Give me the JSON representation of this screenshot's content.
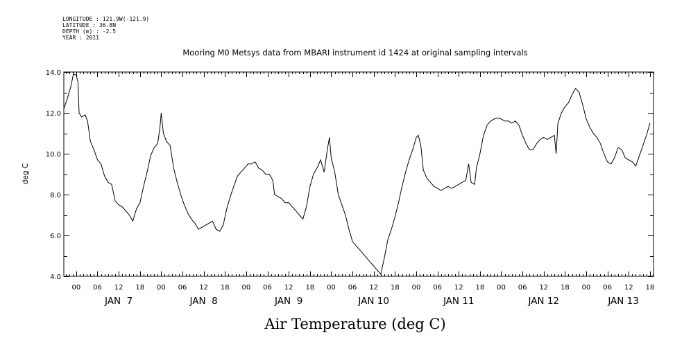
{
  "header": {
    "meta_lines": [
      "LONGITUDE : 121.9W(-121.9)",
      "LATITUDE : 36.8N",
      "DEPTH (m) : -2.5",
      "YEAR : 2011"
    ],
    "title": "Mooring M0 Metsys data from MBARI instrument id 1424 at original sampling intervals"
  },
  "chart_data": {
    "type": "line",
    "title": "Mooring M0 Metsys data from MBARI instrument id 1424 at original sampling intervals",
    "xlabel": "Air Temperature (deg C)",
    "ylabel": "deg C",
    "x_units": "hours since 2011-01-07 00:00",
    "xlim": [
      -3.5,
      163
    ],
    "ylim": [
      4.0,
      14.0
    ],
    "y_ticks": [
      "4.0",
      "6.0",
      "8.0",
      "10.0",
      "12.0",
      "14.0"
    ],
    "x_hour_ticks": [
      {
        "h": 0,
        "label": "00"
      },
      {
        "h": 6,
        "label": "06"
      },
      {
        "h": 12,
        "label": "12"
      },
      {
        "h": 18,
        "label": "18"
      },
      {
        "h": 24,
        "label": "00"
      },
      {
        "h": 30,
        "label": "06"
      },
      {
        "h": 36,
        "label": "12"
      },
      {
        "h": 42,
        "label": "18"
      },
      {
        "h": 48,
        "label": "00"
      },
      {
        "h": 54,
        "label": "06"
      },
      {
        "h": 60,
        "label": "12"
      },
      {
        "h": 66,
        "label": "18"
      },
      {
        "h": 72,
        "label": "00"
      },
      {
        "h": 78,
        "label": "06"
      },
      {
        "h": 84,
        "label": "12"
      },
      {
        "h": 90,
        "label": "18"
      },
      {
        "h": 96,
        "label": "00"
      },
      {
        "h": 102,
        "label": "06"
      },
      {
        "h": 108,
        "label": "12"
      },
      {
        "h": 114,
        "label": "18"
      },
      {
        "h": 120,
        "label": "00"
      },
      {
        "h": 126,
        "label": "06"
      },
      {
        "h": 132,
        "label": "12"
      },
      {
        "h": 138,
        "label": "18"
      },
      {
        "h": 144,
        "label": "00"
      },
      {
        "h": 150,
        "label": "06"
      },
      {
        "h": 156,
        "label": "12"
      },
      {
        "h": 162,
        "label": "18"
      }
    ],
    "day_labels": [
      {
        "h": 12,
        "label": "JAN  7"
      },
      {
        "h": 36,
        "label": "JAN  8"
      },
      {
        "h": 60,
        "label": "JAN  9"
      },
      {
        "h": 84,
        "label": "JAN 10"
      },
      {
        "h": 108,
        "label": "JAN 11"
      },
      {
        "h": 132,
        "label": "JAN 12"
      },
      {
        "h": 154.5,
        "label": "JAN 13"
      }
    ],
    "series": [
      {
        "values": [
          [
            -3.5,
            12.2
          ],
          [
            -2.5,
            12.7
          ],
          [
            -1.5,
            13.3
          ],
          [
            -0.8,
            13.9
          ],
          [
            0,
            13.85
          ],
          [
            0.5,
            13.5
          ],
          [
            0.8,
            12.0
          ],
          [
            1.5,
            11.8
          ],
          [
            2.5,
            11.9
          ],
          [
            3.2,
            11.6
          ],
          [
            4,
            10.6
          ],
          [
            5,
            10.2
          ],
          [
            6,
            9.7
          ],
          [
            7,
            9.5
          ],
          [
            8,
            8.9
          ],
          [
            9,
            8.6
          ],
          [
            10,
            8.5
          ],
          [
            11,
            7.7
          ],
          [
            12,
            7.5
          ],
          [
            13,
            7.4
          ],
          [
            14,
            7.2
          ],
          [
            15,
            7.0
          ],
          [
            16,
            6.7
          ],
          [
            17,
            7.3
          ],
          [
            18,
            7.6
          ],
          [
            19,
            8.4
          ],
          [
            20,
            9.1
          ],
          [
            21,
            9.9
          ],
          [
            22,
            10.3
          ],
          [
            23,
            10.5
          ],
          [
            23.6,
            11.2
          ],
          [
            24,
            12.0
          ],
          [
            24.6,
            11.0
          ],
          [
            25.5,
            10.6
          ],
          [
            26.5,
            10.4
          ],
          [
            27.5,
            9.3
          ],
          [
            28.5,
            8.6
          ],
          [
            29.5,
            8.0
          ],
          [
            30.5,
            7.5
          ],
          [
            31.5,
            7.1
          ],
          [
            32.5,
            6.8
          ],
          [
            33.5,
            6.6
          ],
          [
            34.5,
            6.3
          ],
          [
            35.5,
            6.4
          ],
          [
            36.5,
            6.5
          ],
          [
            37.5,
            6.6
          ],
          [
            38.5,
            6.7
          ],
          [
            39.5,
            6.3
          ],
          [
            40.5,
            6.2
          ],
          [
            41.5,
            6.5
          ],
          [
            42.5,
            7.3
          ],
          [
            43.5,
            7.9
          ],
          [
            44.5,
            8.4
          ],
          [
            45.5,
            8.9
          ],
          [
            46.5,
            9.1
          ],
          [
            47.5,
            9.3
          ],
          [
            48.5,
            9.5
          ],
          [
            49.5,
            9.5
          ],
          [
            50.5,
            9.6
          ],
          [
            51.5,
            9.3
          ],
          [
            52.5,
            9.2
          ],
          [
            53.5,
            9.0
          ],
          [
            54.5,
            9.0
          ],
          [
            55.5,
            8.7
          ],
          [
            56,
            8.0
          ],
          [
            57,
            7.9
          ],
          [
            58,
            7.8
          ],
          [
            59,
            7.6
          ],
          [
            60,
            7.6
          ],
          [
            61,
            7.4
          ],
          [
            62,
            7.2
          ],
          [
            63,
            7.0
          ],
          [
            64,
            6.8
          ],
          [
            65,
            7.4
          ],
          [
            66,
            8.4
          ],
          [
            67,
            9.0
          ],
          [
            68,
            9.3
          ],
          [
            69,
            9.7
          ],
          [
            70,
            9.1
          ],
          [
            71,
            10.3
          ],
          [
            71.5,
            10.8
          ],
          [
            72,
            9.8
          ],
          [
            73,
            9.1
          ],
          [
            74,
            8.0
          ],
          [
            75,
            7.5
          ],
          [
            76,
            7.0
          ],
          [
            77,
            6.3
          ],
          [
            78,
            5.7
          ],
          [
            79,
            5.5
          ],
          [
            80,
            5.3
          ],
          [
            81,
            5.1
          ],
          [
            82,
            4.9
          ],
          [
            83,
            4.7
          ],
          [
            84,
            4.5
          ],
          [
            85,
            4.3
          ],
          [
            86,
            4.1
          ],
          [
            87,
            4.9
          ],
          [
            88,
            5.8
          ],
          [
            89,
            6.3
          ],
          [
            90,
            6.9
          ],
          [
            91,
            7.6
          ],
          [
            92,
            8.4
          ],
          [
            93,
            9.1
          ],
          [
            94,
            9.7
          ],
          [
            95,
            10.2
          ],
          [
            96,
            10.8
          ],
          [
            96.6,
            10.9
          ],
          [
            97.3,
            10.4
          ],
          [
            98,
            9.2
          ],
          [
            99,
            8.8
          ],
          [
            100,
            8.6
          ],
          [
            101,
            8.4
          ],
          [
            102,
            8.3
          ],
          [
            103,
            8.2
          ],
          [
            104,
            8.3
          ],
          [
            105,
            8.4
          ],
          [
            106,
            8.3
          ],
          [
            107,
            8.4
          ],
          [
            108,
            8.5
          ],
          [
            109,
            8.6
          ],
          [
            110,
            8.7
          ],
          [
            110.8,
            9.5
          ],
          [
            111.5,
            8.6
          ],
          [
            112.5,
            8.5
          ],
          [
            113,
            9.3
          ],
          [
            114,
            10.0
          ],
          [
            115,
            10.9
          ],
          [
            116,
            11.4
          ],
          [
            117,
            11.6
          ],
          [
            118,
            11.7
          ],
          [
            119,
            11.75
          ],
          [
            120,
            11.7
          ],
          [
            121,
            11.6
          ],
          [
            122,
            11.6
          ],
          [
            123,
            11.5
          ],
          [
            124,
            11.6
          ],
          [
            125,
            11.4
          ],
          [
            126,
            10.9
          ],
          [
            127,
            10.5
          ],
          [
            128,
            10.2
          ],
          [
            129,
            10.2
          ],
          [
            130,
            10.5
          ],
          [
            131,
            10.7
          ],
          [
            132,
            10.8
          ],
          [
            133,
            10.7
          ],
          [
            134,
            10.8
          ],
          [
            135,
            10.9
          ],
          [
            135.5,
            10.0
          ],
          [
            136,
            11.5
          ],
          [
            137,
            12.0
          ],
          [
            138,
            12.3
          ],
          [
            139,
            12.5
          ],
          [
            140,
            12.9
          ],
          [
            141,
            13.2
          ],
          [
            142,
            13.0
          ],
          [
            143,
            12.4
          ],
          [
            144,
            11.7
          ],
          [
            145,
            11.3
          ],
          [
            146,
            11.0
          ],
          [
            147,
            10.8
          ],
          [
            148,
            10.5
          ],
          [
            149,
            10.0
          ],
          [
            150,
            9.6
          ],
          [
            151,
            9.5
          ],
          [
            152,
            9.8
          ],
          [
            153,
            10.3
          ],
          [
            154,
            10.2
          ],
          [
            155,
            9.8
          ],
          [
            156,
            9.7
          ],
          [
            157,
            9.6
          ],
          [
            158,
            9.4
          ],
          [
            159,
            9.9
          ],
          [
            160,
            10.4
          ],
          [
            161,
            10.9
          ],
          [
            162,
            11.5
          ]
        ]
      }
    ]
  }
}
